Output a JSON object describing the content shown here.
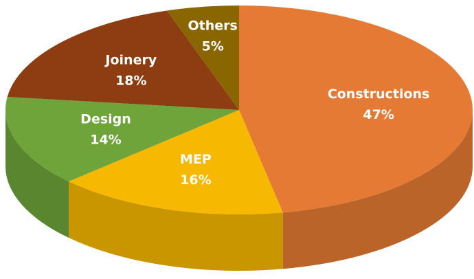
{
  "chart_data": {
    "type": "pie",
    "categories": [
      "Constructions",
      "MEP",
      "Design",
      "Joinery",
      "Others"
    ],
    "values": [
      47,
      16,
      14,
      18,
      5
    ],
    "value_labels": [
      "47%",
      "16%",
      "14%",
      "18%",
      "5%"
    ],
    "colors": [
      "#e47a33",
      "#f6b800",
      "#6ea43a",
      "#8e3d12",
      "#8a6600"
    ]
  }
}
